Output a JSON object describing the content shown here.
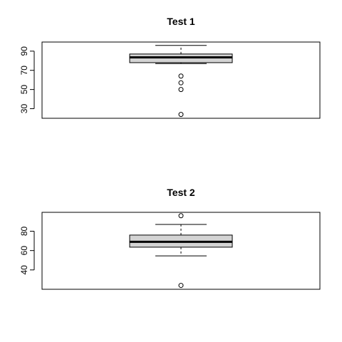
{
  "chart_data": [
    {
      "type": "boxplot",
      "title": "Test 1",
      "xlabel": "",
      "ylabel": "",
      "ylim": [
        20,
        99.5
      ],
      "yticks": [
        30,
        50,
        70,
        90
      ],
      "box": {
        "whisker_low": 77,
        "q1": 78,
        "median": 83.5,
        "q3": 87,
        "whisker_high": 96
      },
      "outliers": [
        64,
        57,
        50,
        24
      ],
      "colors": {
        "box_fill": "#d3d3d3",
        "stroke": "#000000"
      }
    },
    {
      "type": "boxplot",
      "title": "Test 2",
      "xlabel": "",
      "ylabel": "",
      "ylim": [
        20,
        99.5
      ],
      "yticks": [
        40,
        60,
        80
      ],
      "box": {
        "whisker_low": 54.5,
        "q1": 63.5,
        "median": 69,
        "q3": 76,
        "whisker_high": 87
      },
      "outliers": [
        96,
        24
      ],
      "colors": {
        "box_fill": "#d3d3d3",
        "stroke": "#000000"
      }
    }
  ]
}
